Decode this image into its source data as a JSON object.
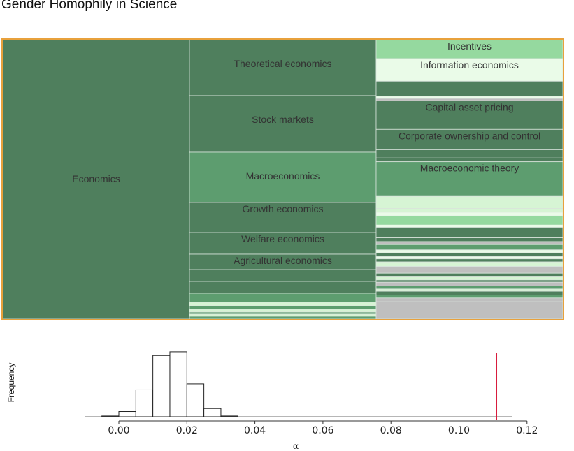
{
  "title": "Gender Homophily in Science",
  "colors": {
    "dark": "#4f7f5d",
    "medium": "#5d9d6f",
    "bright": "#95d99f",
    "pale": "#d6f4d4",
    "paler": "#eafbe8",
    "gray": "#bfbfbf",
    "highlight_border": "#e8a13c",
    "alpha_line": "#d81c3d",
    "label_text": "#333333"
  },
  "chart_data": [
    {
      "type": "treemap",
      "root": "Economics",
      "columns": [
        {
          "level": 1,
          "cells": [
            {
              "label": "Economics",
              "weight": 400,
              "color": "dark"
            }
          ]
        },
        {
          "level": 2,
          "cells": [
            {
              "label": "Theoretical economics",
              "weight": 80,
              "color": "dark"
            },
            {
              "label": "Stock markets",
              "weight": 81,
              "color": "dark"
            },
            {
              "label": "Macroeconomics",
              "weight": 72,
              "color": "medium"
            },
            {
              "label": "Growth economics",
              "weight": 43,
              "color": "dark"
            },
            {
              "label": "Welfare economics",
              "weight": 31,
              "color": "dark"
            },
            {
              "label": "Agricultural economics",
              "weight": 22,
              "color": "dark"
            },
            {
              "label": "",
              "weight": 17,
              "color": "dark"
            },
            {
              "label": "",
              "weight": 17,
              "color": "dark"
            },
            {
              "label": "",
              "weight": 13,
              "color": "medium"
            },
            {
              "label": "",
              "weight": 5,
              "color": "pale"
            },
            {
              "label": "",
              "weight": 5,
              "color": "medium"
            },
            {
              "label": "",
              "weight": 4,
              "color": "pale"
            },
            {
              "label": "",
              "weight": 3,
              "color": "medium"
            },
            {
              "label": "",
              "weight": 3,
              "color": "pale"
            },
            {
              "label": "",
              "weight": 4,
              "color": "medium"
            }
          ]
        },
        {
          "level": 3,
          "cells": [
            {
              "label": "Incentives",
              "weight": 25,
              "color": "bright"
            },
            {
              "label": "Information economics",
              "weight": 30,
              "color": "paler"
            },
            {
              "label": "",
              "weight": 20,
              "color": "dark"
            },
            {
              "label": "",
              "weight": 3,
              "color": "paler"
            },
            {
              "label": "",
              "weight": 3,
              "color": "gray"
            },
            {
              "label": "Capital asset pricing",
              "weight": 38,
              "color": "dark"
            },
            {
              "label": "Corporate ownership and control",
              "weight": 27,
              "color": "dark"
            },
            {
              "label": "",
              "weight": 11,
              "color": "dark"
            },
            {
              "label": "",
              "weight": 5,
              "color": "dark"
            },
            {
              "label": "Macroeconomic theory",
              "weight": 46,
              "color": "medium"
            },
            {
              "label": "",
              "weight": 16,
              "color": "pale"
            },
            {
              "label": "",
              "weight": 5,
              "color": "pale"
            },
            {
              "label": "",
              "weight": 5,
              "color": "paler"
            },
            {
              "label": "",
              "weight": 12,
              "color": "bright"
            },
            {
              "label": "",
              "weight": 3,
              "color": "paler"
            },
            {
              "label": "",
              "weight": 14,
              "color": "dark"
            },
            {
              "label": "",
              "weight": 5,
              "color": "dark"
            },
            {
              "label": "",
              "weight": 4,
              "color": "gray"
            },
            {
              "label": "",
              "weight": 7,
              "color": "medium"
            },
            {
              "label": "",
              "weight": 4,
              "color": "paler"
            },
            {
              "label": "",
              "weight": 5,
              "color": "dark"
            },
            {
              "label": "",
              "weight": 3,
              "color": "paler"
            },
            {
              "label": "",
              "weight": 4,
              "color": "dark"
            },
            {
              "label": "",
              "weight": 6,
              "color": "pale"
            },
            {
              "label": "",
              "weight": 9,
              "color": "gray"
            },
            {
              "label": "",
              "weight": 5,
              "color": "dark"
            },
            {
              "label": "",
              "weight": 4,
              "color": "pale"
            },
            {
              "label": "",
              "weight": 3,
              "color": "dark"
            },
            {
              "label": "",
              "weight": 5,
              "color": "gray"
            },
            {
              "label": "",
              "weight": 4,
              "color": "medium"
            },
            {
              "label": "",
              "weight": 3,
              "color": "pale"
            },
            {
              "label": "",
              "weight": 5,
              "color": "dark"
            },
            {
              "label": "",
              "weight": 4,
              "color": "medium"
            },
            {
              "label": "",
              "weight": 5,
              "color": "gray"
            },
            {
              "label": "",
              "weight": 23,
              "color": "gray"
            }
          ]
        }
      ]
    },
    {
      "type": "bar",
      "subtype": "histogram",
      "xlabel": "α",
      "ylabel": "Frequency",
      "xlim": [
        -0.01,
        0.12
      ],
      "ylim": [
        0,
        90
      ],
      "xticks": [
        "0.00",
        "0.02",
        "0.04",
        "0.06",
        "0.08",
        "0.10",
        "0.12"
      ],
      "xtick_values": [
        0,
        0.02,
        0.04,
        0.06,
        0.08,
        0.1,
        0.12
      ],
      "bin_width": 0.005,
      "bins": [
        {
          "start": -0.005,
          "count": 1
        },
        {
          "start": 0.0,
          "count": 7
        },
        {
          "start": 0.005,
          "count": 36
        },
        {
          "start": 0.01,
          "count": 82
        },
        {
          "start": 0.015,
          "count": 87
        },
        {
          "start": 0.02,
          "count": 44
        },
        {
          "start": 0.025,
          "count": 11
        },
        {
          "start": 0.03,
          "count": 1
        }
      ],
      "observed_alpha": 0.111
    }
  ]
}
